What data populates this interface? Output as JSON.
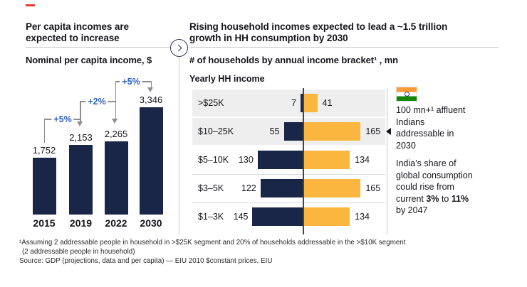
{
  "colors": {
    "navy": "#1a2648",
    "yellow": "#fbb640",
    "growth_blue": "#2e63c6",
    "accent_red": "#e8392d",
    "band_gray": "#eeeeee",
    "line_gray": "#8d8d8d",
    "flag_saffron": "#ff9933",
    "flag_green": "#138807"
  },
  "left_panel": {
    "headline": "Per capita incomes are\nexpected to increase"
  },
  "right_panel": {
    "headline": "Rising household incomes expected to lead a ~1.5 trillion\ngrowth in HH consumption by 2030"
  },
  "sidebar": {
    "flag_icon": "india-flag-icon",
    "affluent_note": "100 mn+¹ affluent\nIndians\naddressable in\n2030",
    "consumption_prefix": "India’s share of\nglobal consumption\ncould rise from\ncurrent ",
    "consumption_bold_from": "3%",
    "consumption_mid": " to ",
    "consumption_bold_to": "11%",
    "consumption_suffix": "\nby 2047"
  },
  "footnotes": {
    "line1": "¹Assuming 2 addressable people in household in >$25K segment and 20% of households addressable in the >$10K segment",
    "line2": "(2 addressable people in household)",
    "source": "Source: GDP (projections, data and per capita) — EIU 2010 $constant prices, EIU"
  },
  "chart_data": [
    {
      "type": "bar",
      "title": "Nominal per capita income, $",
      "categories": [
        "2015",
        "2019",
        "2022",
        "2030"
      ],
      "values": [
        1752,
        2153,
        2265,
        3346
      ],
      "value_labels": [
        "1,752",
        "2,153",
        "2,265",
        "3,346"
      ],
      "annotations": [
        {
          "from": "2015",
          "to": "2019",
          "label": "+5%"
        },
        {
          "from": "2019",
          "to": "2022",
          "label": "+2%"
        },
        {
          "from": "2022",
          "to": "2030",
          "label": "+5%"
        }
      ],
      "ylim": [
        0,
        3500
      ],
      "grid": false,
      "legend": false
    },
    {
      "type": "bar",
      "orientation": "horizontal",
      "title": "# of households by annual income bracket¹ , mn",
      "axis_header": "Yearly HH income",
      "categories": [
        ">$25K",
        "$10–25K",
        "$5–10K",
        "$3–5K",
        "$1–3K"
      ],
      "series": [
        {
          "name": "navy (left of axis)",
          "values": [
            7,
            55,
            130,
            122,
            145
          ]
        },
        {
          "name": "yellow (right of axis)",
          "values": [
            41,
            165,
            134,
            165,
            134
          ]
        }
      ],
      "highlighted_rows": [
        ">$25K",
        "$10–25K"
      ],
      "grid": false,
      "legend": false
    }
  ]
}
